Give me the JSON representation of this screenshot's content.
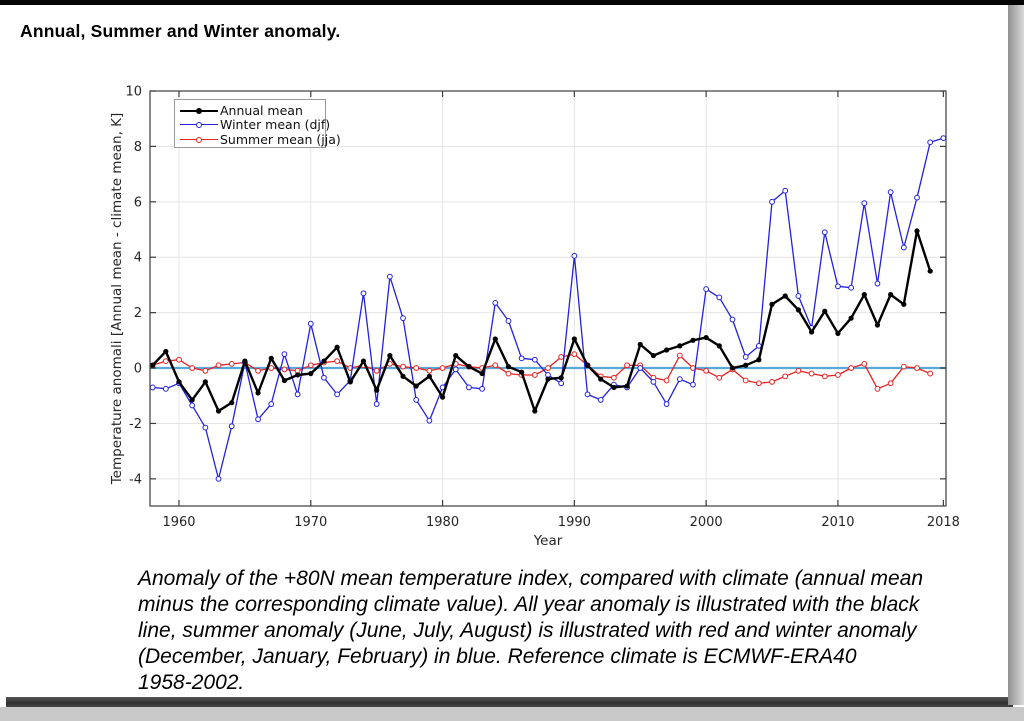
{
  "title": "Annual, Summer and Winter anomaly.",
  "caption_lines": [
    "Anomaly of the +80N mean temperature index, compared with climate (annual mean",
    "minus the corresponding climate value). All year anomaly is illustrated with the black",
    "line, summer anomaly (June, July, August) is illustrated with red and winter anomaly",
    "(December, January, February) in blue. Reference climate is ECMWF-ERA40",
    "1958-2002."
  ],
  "colors": {
    "grid": "#e4e4e4",
    "spine": "#3c3c3c",
    "tick_label": "#262626",
    "zero_line": "#56a9d8"
  },
  "chart_data": {
    "type": "line",
    "xlabel": "Year",
    "ylabel": "Temperature anomali [Annual mean - climate mean, K]",
    "x_ticks": [
      1960,
      1970,
      1980,
      1990,
      2000,
      2010,
      2018
    ],
    "y_ticks": [
      -4,
      -2,
      0,
      2,
      4,
      6,
      8,
      10
    ],
    "xlim": [
      1957.8,
      2018.2
    ],
    "ylim": [
      -4.98,
      10
    ],
    "grid": true,
    "legend_position": "top-left",
    "zero_line_value": 0,
    "series": [
      {
        "name": "Annual mean",
        "color": "#000000",
        "marker": "filled-circle",
        "line_width": 2.4,
        "start_year": 1958,
        "values": [
          0.1,
          0.6,
          -0.5,
          -1.15,
          -0.5,
          -1.55,
          -1.25,
          0.25,
          -0.9,
          0.35,
          -0.45,
          -0.25,
          -0.2,
          0.25,
          0.75,
          -0.5,
          0.25,
          -0.8,
          0.45,
          -0.3,
          -0.65,
          -0.3,
          -1.05,
          0.45,
          0.05,
          -0.2,
          1.05,
          0.05,
          -0.15,
          -1.55,
          -0.4,
          -0.35,
          1.05,
          0.1,
          -0.4,
          -0.7,
          -0.65,
          0.85,
          0.45,
          0.65,
          0.8,
          1.0,
          1.1,
          0.8,
          0.0,
          0.1,
          0.3,
          2.3,
          2.6,
          2.1,
          1.3,
          2.05,
          1.25,
          1.8,
          2.65,
          1.55,
          2.65,
          2.3,
          4.95,
          3.5
        ]
      },
      {
        "name": "Winter mean (djf)",
        "color": "#2323dc",
        "marker": "open-circle",
        "line_width": 1.3,
        "start_year": 1958,
        "values": [
          -0.7,
          -0.75,
          -0.55,
          -1.35,
          -2.15,
          -4.0,
          -2.1,
          0.2,
          -1.85,
          -1.3,
          0.5,
          -0.95,
          1.6,
          -0.35,
          -0.95,
          -0.45,
          2.7,
          -1.3,
          3.3,
          1.8,
          -1.15,
          -1.9,
          -0.7,
          -0.05,
          -0.7,
          -0.75,
          2.35,
          1.7,
          0.35,
          0.3,
          -0.25,
          -0.55,
          4.05,
          -0.95,
          -1.15,
          -0.6,
          -0.7,
          0.0,
          -0.5,
          -1.3,
          -0.4,
          -0.6,
          2.85,
          2.55,
          1.75,
          0.4,
          0.8,
          6.0,
          6.4,
          2.6,
          1.45,
          4.9,
          2.95,
          2.9,
          5.95,
          3.05,
          6.35,
          4.35,
          6.15,
          8.15,
          8.3
        ]
      },
      {
        "name": "Summer mean (jja)",
        "color": "#e62222",
        "marker": "open-circle",
        "line_width": 1.3,
        "start_year": 1958,
        "values": [
          0.1,
          0.25,
          0.3,
          0.0,
          -0.1,
          0.1,
          0.15,
          0.2,
          -0.1,
          0.0,
          -0.05,
          -0.1,
          0.1,
          0.2,
          0.25,
          0.0,
          0.1,
          -0.1,
          0.15,
          0.05,
          0.0,
          -0.1,
          0.0,
          0.15,
          0.05,
          0.0,
          0.1,
          -0.2,
          -0.25,
          -0.25,
          0.0,
          0.4,
          0.5,
          0.1,
          -0.3,
          -0.35,
          0.1,
          0.1,
          -0.35,
          -0.45,
          0.45,
          0.0,
          -0.1,
          -0.35,
          -0.05,
          -0.45,
          -0.55,
          -0.5,
          -0.3,
          -0.1,
          -0.2,
          -0.3,
          -0.25,
          0.0,
          0.15,
          -0.75,
          -0.55,
          0.05,
          0.0,
          -0.2
        ]
      }
    ]
  }
}
